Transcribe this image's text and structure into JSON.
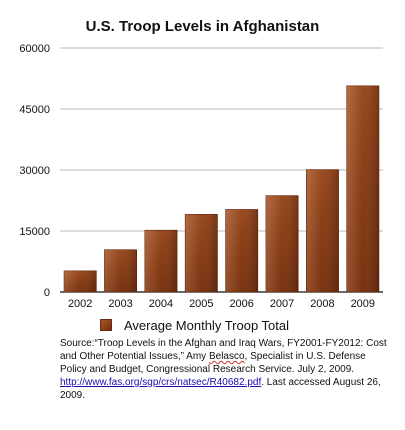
{
  "chart_data": {
    "type": "bar",
    "title": "U.S. Troop Levels in Afghanistan",
    "categories": [
      "2002",
      "2003",
      "2004",
      "2005",
      "2006",
      "2007",
      "2008",
      "2009"
    ],
    "series": [
      {
        "name": "Average Monthly Troop Total",
        "values": [
          5200,
          10400,
          15200,
          19100,
          20300,
          23700,
          30100,
          50700
        ]
      }
    ],
    "yticks": [
      0,
      15000,
      30000,
      45000,
      60000
    ],
    "ylim": [
      0,
      60000
    ],
    "grid": true,
    "legend_position": "bottom",
    "bar_color": "#8a3e17"
  },
  "source_note": {
    "part1": "Source:“Troop Levels in the Afghan and Iraq Wars, FY2001-FY2012: Cost and Other Potential Issues,” Amy ",
    "author_lastname": "Belasco",
    "part2": ", Specialist in U.S. Defense Policy and Budget, Congressional Research Service. July 2, 2009. ",
    "link": "http://www.fas.org/sgp/crs/natsec/R40682.pdf",
    "part3": ". Last accessed August 26, 2009."
  }
}
